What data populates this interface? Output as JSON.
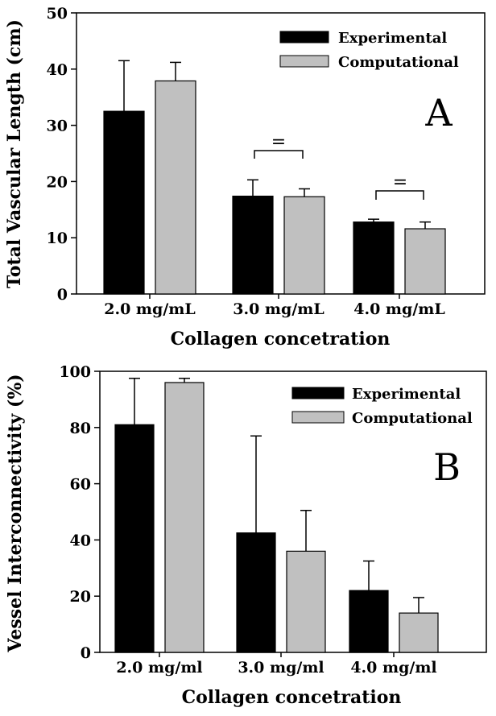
{
  "chart_data": [
    {
      "type": "bar",
      "panel_label": "A",
      "categories": [
        "2.0 mg/mL",
        "3.0 mg/mL",
        "4.0 mg/mL"
      ],
      "series": [
        {
          "name": "Experimental",
          "values": [
            32.5,
            17.4,
            12.8
          ],
          "errors": [
            9.0,
            2.9,
            0.5
          ],
          "color": "#000000"
        },
        {
          "name": "Computational",
          "values": [
            37.9,
            17.3,
            11.6
          ],
          "errors": [
            3.3,
            1.4,
            1.2
          ],
          "color": "#c0c0c0"
        }
      ],
      "xlabel": "Collagen concetration",
      "ylabel": "Total Vascular Length (cm)",
      "ylim": [
        0,
        50
      ],
      "yticks": [
        "0",
        "10",
        "20",
        "30",
        "40",
        "50"
      ],
      "annotations": [
        "=",
        "="
      ],
      "legend_position": "top-right"
    },
    {
      "type": "bar",
      "panel_label": "B",
      "categories": [
        "2.0 mg/ml",
        "3.0 mg/ml",
        "4.0 mg/ml"
      ],
      "series": [
        {
          "name": "Experimental",
          "values": [
            81,
            42.5,
            22
          ],
          "errors": [
            16.5,
            34.5,
            10.5
          ],
          "color": "#000000"
        },
        {
          "name": "Computational",
          "values": [
            96,
            36,
            14
          ],
          "errors": [
            1.5,
            14.5,
            5.5
          ],
          "color": "#c0c0c0"
        }
      ],
      "xlabel": "Collagen concetration",
      "ylabel": "Vessel Interconnectivity (%)",
      "ylim": [
        0,
        100
      ],
      "yticks": [
        "0",
        "20",
        "40",
        "60",
        "80",
        "100"
      ],
      "legend_position": "top-right"
    }
  ]
}
